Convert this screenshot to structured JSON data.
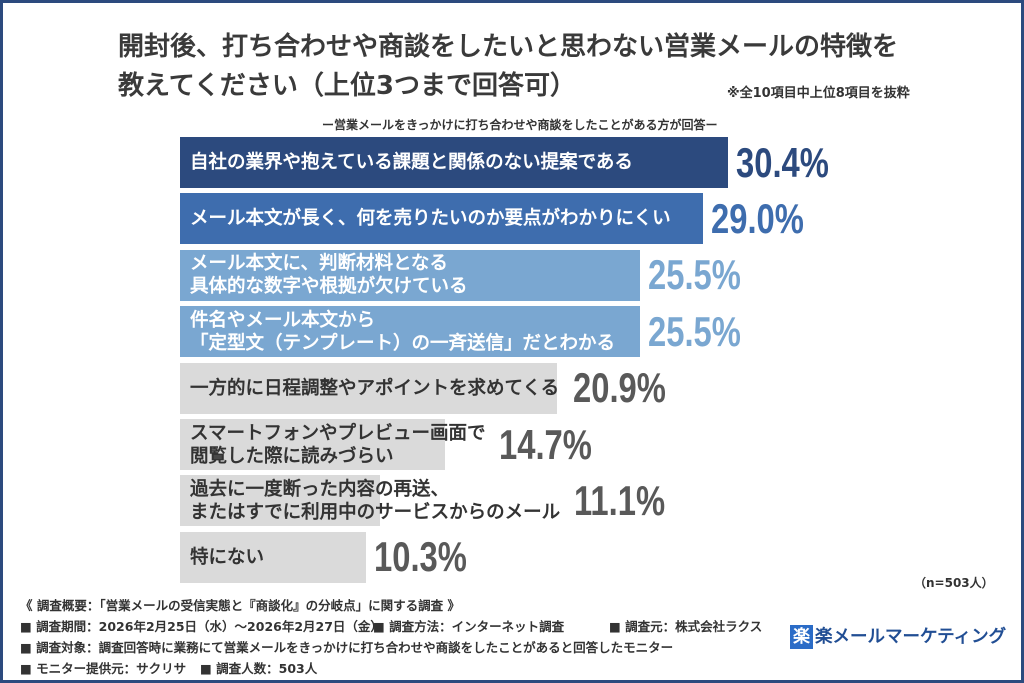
{
  "chart_data": {
    "type": "bar",
    "orientation": "horizontal",
    "title": "開封後、打ち合わせや商談をしたいと思わない営業メールの特徴を\n教えてください（上位3つまで回答可）",
    "note": "※全10項目中上位8項目を抜粋",
    "subtitle": "ー営業メールをきっかけに打ち合わせや商談をしたことがある方が回答ー",
    "categories": [
      "自社の業界や抱えている課題と関係のない提案である",
      "メール本文が長く、何を売りたいのか要点がわかりにくい",
      "メール本文に、判断材料となる\n具体的な数字や根拠が欠けている",
      "件名やメール本文から\n「定型文（テンプレート）の一斉送信」だとわかる",
      "一方的に日程調整やアポイントを求めてくる",
      "スマートフォンやプレビュー画面で\n閲覧した際に読みづらい",
      "過去に一度断った内容の再送、\nまたはすでに利用中のサービスからのメール",
      "特にない"
    ],
    "values": [
      30.4,
      29.0,
      25.5,
      25.5,
      20.9,
      14.7,
      11.1,
      10.3
    ],
    "value_labels": [
      "30.4%",
      "29.0%",
      "25.5%",
      "25.5%",
      "20.9%",
      "14.7%",
      "11.1%",
      "10.3%"
    ],
    "sample_size": "（n=503人）",
    "bar_colors": [
      "#2c4a7e",
      "#3e6dae",
      "#7aa7d1",
      "#7aa7d1",
      "#dadada",
      "#dadada",
      "#dadada",
      "#dadada"
    ],
    "category_text_colors": [
      "#ffffff",
      "#ffffff",
      "#ffffff",
      "#ffffff",
      "#333333",
      "#333333",
      "#333333",
      "#333333"
    ],
    "value_label_colors": [
      "#2c4a7e",
      "#3e6dae",
      "#7aa7d1",
      "#7aa7d1",
      "#595959",
      "#595959",
      "#595959",
      "#595959"
    ],
    "grid": false,
    "legend": "none"
  },
  "survey": {
    "heading": "《 調査概要：「営業メールの受信実態と『商談化』の分岐点」に関する調査 》",
    "period": "■ 調査期間：2026年2月25日（水）～2026年2月27日（金）",
    "method": "■ 調査方法：インターネット調査",
    "organizer": "■ 調査元：株式会社ラクス",
    "target": "■ 調査対象：調査回答時に業務にて営業メールをきっかけに打ち合わせや商談をしたことがあると回答したモニター",
    "monitor_provider": "■ モニター提供元：サクリサ",
    "respondents": "■ 調査人数：503人"
  },
  "logo": {
    "mark": "楽",
    "wordmark": "楽メールマーケティング"
  },
  "colors": {
    "frame_border": "#2c4a7e",
    "title_text": "#3a3a3a",
    "body_text": "#333333",
    "logo_mark_bg": "#2b6cc7",
    "logo_text": "#214e94"
  }
}
